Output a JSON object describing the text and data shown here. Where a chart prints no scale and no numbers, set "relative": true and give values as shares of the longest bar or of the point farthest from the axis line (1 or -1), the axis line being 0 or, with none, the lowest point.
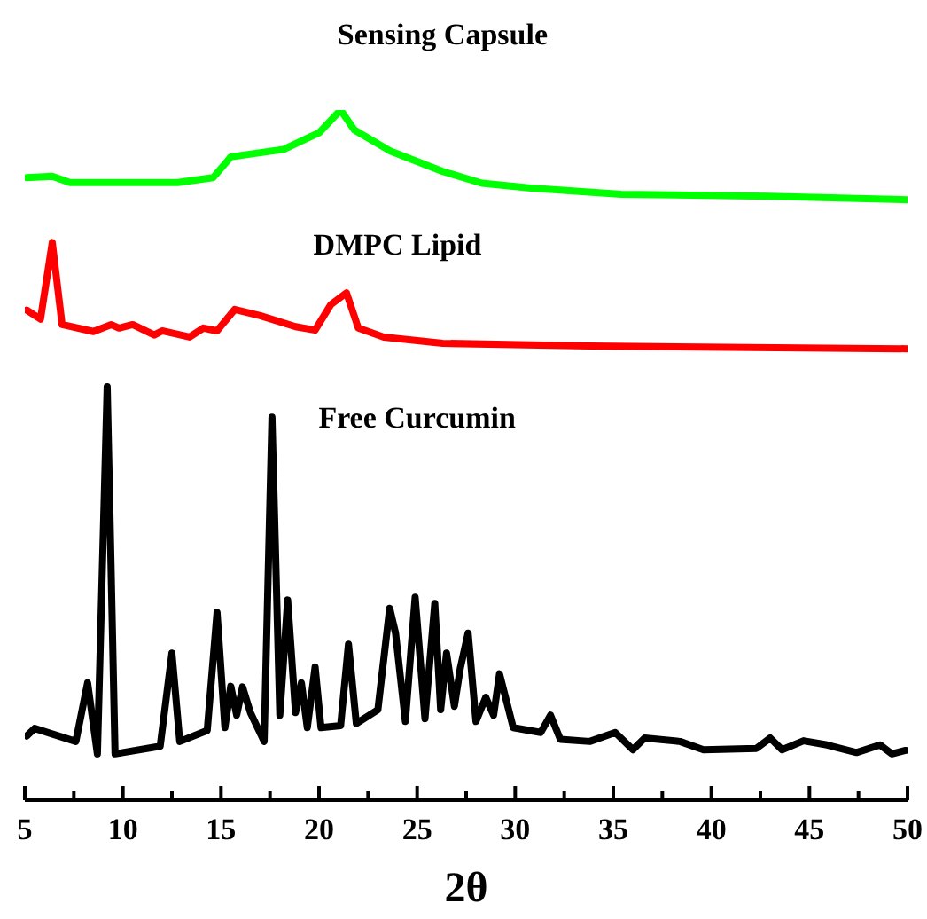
{
  "chart_data": {
    "type": "line",
    "xlabel": "2θ",
    "relative": true,
    "legend": false,
    "marker": "none",
    "line_style": "solid",
    "xlim": [
      5,
      50
    ],
    "xticks": [
      5,
      {
        "value": 7.5,
        "label": null
      },
      10,
      {
        "value": 12.5,
        "label": null
      },
      15,
      {
        "value": 17.5,
        "label": null
      },
      20,
      {
        "value": 22.5,
        "label": null
      },
      25,
      {
        "value": 27.5,
        "label": null
      },
      30,
      {
        "value": 32.5,
        "label": null
      },
      35,
      {
        "value": 37.5,
        "label": null
      },
      40,
      {
        "value": 42.5,
        "label": null
      },
      45,
      {
        "value": 47.5,
        "label": null
      },
      50
    ],
    "series": [
      {
        "name": "Sensing Capsule",
        "color": "#00ff00",
        "x": [
          5.1,
          6.4,
          7.3,
          12.8,
          14.6,
          15.5,
          18.2,
          20.0,
          21.1,
          21.8,
          23.6,
          26.3,
          28.3,
          30.8,
          35.4,
          42.9,
          50
        ],
        "values": [
          0.902,
          0.904,
          0.895,
          0.895,
          0.902,
          0.932,
          0.943,
          0.967,
          1.0,
          0.971,
          0.941,
          0.911,
          0.894,
          0.887,
          0.878,
          0.875,
          0.87
        ]
      },
      {
        "name": "DMPC Lipid",
        "color": "#ff0000",
        "x": [
          5.1,
          5.8,
          6.4,
          6.9,
          8.5,
          9.4,
          9.8,
          10.5,
          11.6,
          12.0,
          13.4,
          14.1,
          14.8,
          15.7,
          17.0,
          18.8,
          19.8,
          20.6,
          21.4,
          22.0,
          23.3,
          26.3,
          33.8,
          50
        ],
        "values": [
          0.71,
          0.697,
          0.808,
          0.689,
          0.679,
          0.689,
          0.684,
          0.689,
          0.674,
          0.68,
          0.671,
          0.684,
          0.68,
          0.711,
          0.702,
          0.686,
          0.681,
          0.718,
          0.735,
          0.684,
          0.671,
          0.662,
          0.658,
          0.654
        ]
      },
      {
        "name": "Free Curcumin",
        "color": "#000000",
        "x": [
          5.1,
          5.5,
          7.6,
          8.2,
          8.7,
          9.2,
          9.6,
          11.9,
          12.5,
          12.9,
          14.3,
          14.8,
          15.2,
          15.5,
          15.8,
          16.1,
          16.5,
          17.2,
          17.6,
          18.0,
          18.4,
          18.8,
          19.1,
          19.4,
          19.8,
          20.1,
          21.1,
          21.5,
          21.9,
          23.0,
          23.6,
          23.9,
          24.4,
          24.9,
          25.4,
          25.9,
          26.2,
          26.5,
          26.9,
          27.2,
          27.6,
          28.0,
          28.5,
          28.9,
          29.2,
          29.9,
          31.3,
          31.8,
          32.3,
          33.8,
          35.1,
          36.0,
          36.6,
          38.4,
          39.6,
          42.3,
          43.0,
          43.6,
          44.7,
          45.9,
          47.4,
          48.6,
          49.2,
          49.9
        ],
        "values": [
          0.093,
          0.104,
          0.085,
          0.17,
          0.067,
          0.599,
          0.067,
          0.078,
          0.213,
          0.085,
          0.101,
          0.272,
          0.105,
          0.165,
          0.123,
          0.164,
          0.127,
          0.085,
          0.555,
          0.123,
          0.29,
          0.127,
          0.17,
          0.105,
          0.193,
          0.105,
          0.108,
          0.226,
          0.111,
          0.131,
          0.278,
          0.242,
          0.114,
          0.294,
          0.118,
          0.285,
          0.131,
          0.213,
          0.136,
          0.191,
          0.242,
          0.114,
          0.149,
          0.123,
          0.183,
          0.105,
          0.098,
          0.123,
          0.088,
          0.085,
          0.098,
          0.073,
          0.09,
          0.085,
          0.073,
          0.075,
          0.09,
          0.073,
          0.086,
          0.08,
          0.069,
          0.08,
          0.067,
          0.072
        ]
      }
    ]
  }
}
